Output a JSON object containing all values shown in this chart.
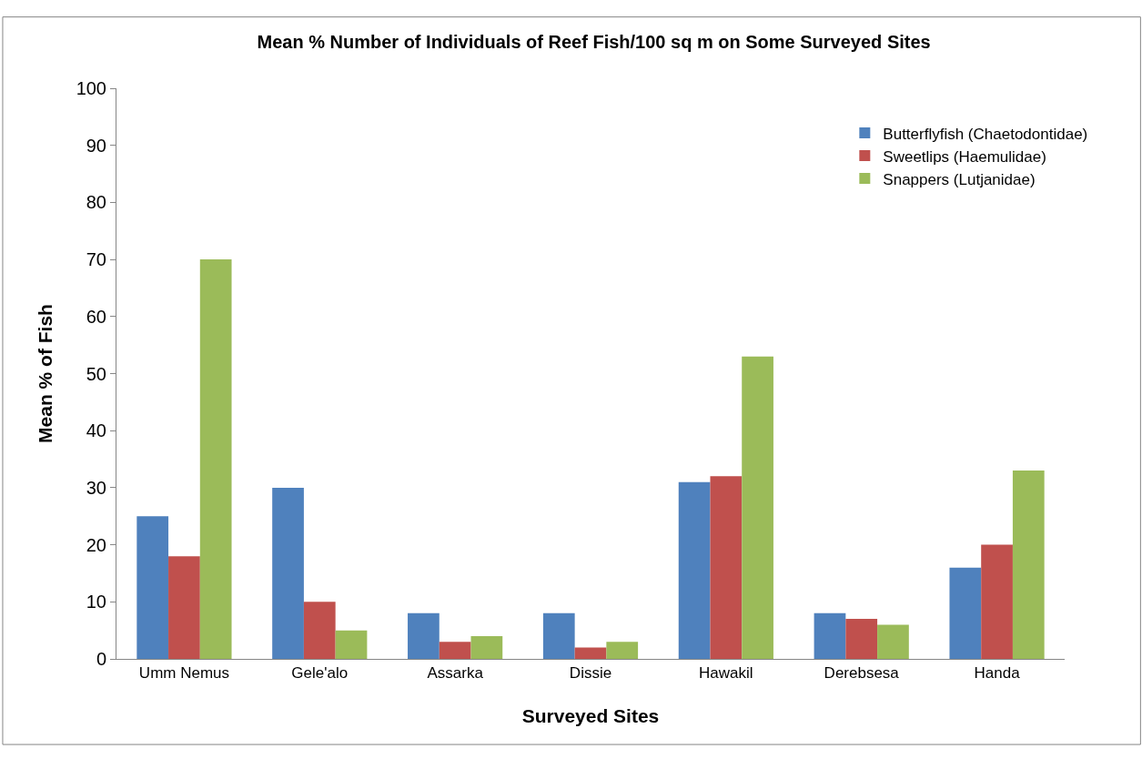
{
  "chart_data": {
    "type": "bar",
    "title": "Mean % Number of Individuals of Reef Fish/100 sq m on Some Surveyed Sites",
    "xlabel": "Surveyed Sites",
    "ylabel": "Mean % of Fish",
    "categories": [
      "Umm Nemus",
      "Gele'alo",
      "Assarka",
      "Dissie",
      "Hawakil",
      "Derebsesa",
      "Handa"
    ],
    "series": [
      {
        "name": "Butterflyfish (Chaetodontidae)",
        "color": "#4f81bd",
        "values": [
          25,
          30,
          8,
          8,
          31,
          8,
          16
        ]
      },
      {
        "name": "Sweetlips (Haemulidae)",
        "color": "#c0504d",
        "values": [
          18,
          10,
          3,
          2,
          32,
          7,
          20
        ]
      },
      {
        "name": "Snappers (Lutjanidae)",
        "color": "#9bbb59",
        "values": [
          70,
          5,
          4,
          3,
          53,
          6,
          33
        ]
      }
    ],
    "ylim": [
      0,
      100
    ],
    "yticks": [
      0,
      10,
      20,
      30,
      40,
      50,
      60,
      70,
      80,
      90,
      100
    ],
    "grid": false,
    "legend": "top right"
  }
}
